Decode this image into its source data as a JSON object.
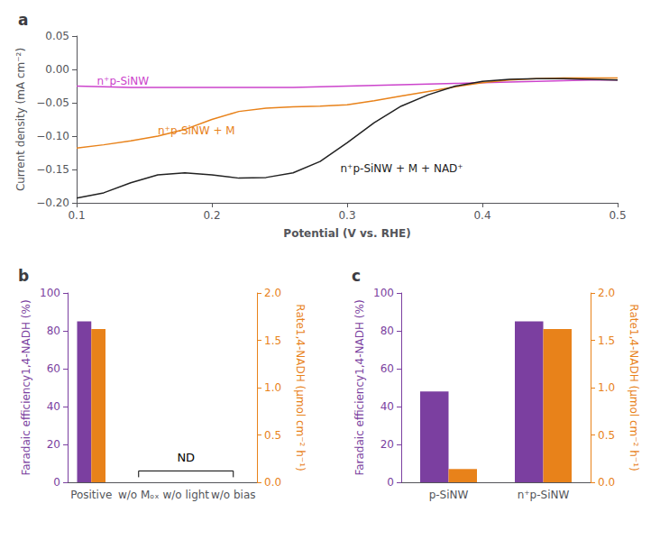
{
  "chart_data": [
    {
      "type": "line",
      "title": "a",
      "x": [
        0.1,
        0.12,
        0.14,
        0.16,
        0.18,
        0.2,
        0.22,
        0.24,
        0.26,
        0.28,
        0.3,
        0.32,
        0.34,
        0.36,
        0.38,
        0.4,
        0.42,
        0.44,
        0.46,
        0.48,
        0.5
      ],
      "series": [
        {
          "color": "#CC44CC",
          "values": [
            -0.025,
            -0.026,
            -0.027,
            -0.027,
            -0.027,
            -0.027,
            -0.027,
            -0.027,
            -0.027,
            -0.026,
            -0.025,
            -0.024,
            -0.023,
            -0.022,
            -0.021,
            -0.02,
            -0.019,
            -0.018,
            -0.017,
            -0.016,
            -0.016
          ]
        },
        {
          "color": "#E8821A",
          "values": [
            -0.118,
            -0.113,
            -0.107,
            -0.1,
            -0.09,
            -0.075,
            -0.063,
            -0.058,
            -0.056,
            -0.055,
            -0.053,
            -0.047,
            -0.04,
            -0.033,
            -0.026,
            -0.02,
            -0.016,
            -0.014,
            -0.013,
            -0.013,
            -0.013
          ]
        },
        {
          "color": "#222222",
          "values": [
            -0.193,
            -0.185,
            -0.17,
            -0.158,
            -0.155,
            -0.158,
            -0.163,
            -0.162,
            -0.155,
            -0.138,
            -0.11,
            -0.08,
            -0.055,
            -0.038,
            -0.025,
            -0.018,
            -0.015,
            -0.014,
            -0.014,
            -0.015,
            -0.016
          ]
        }
      ],
      "xlabel": "Potential (V vs. RHE)",
      "ylabel": "Current density (mA cm⁻²)",
      "xlim": [
        0.1,
        0.5
      ],
      "ylim": [
        -0.2,
        0.05
      ],
      "xticks": [
        0.1,
        0.2,
        0.3,
        0.4,
        0.5
      ],
      "yticks": [
        {
          "value": -0.2,
          "label": "−0.20"
        },
        {
          "value": -0.15,
          "label": "−0.15"
        },
        {
          "value": -0.1,
          "label": "−0.10"
        },
        {
          "value": -0.05,
          "label": "−0.05"
        },
        {
          "value": 0,
          "label": "0.00"
        },
        {
          "value": 0.05,
          "label": "0.05"
        }
      ],
      "grid": false,
      "annotations": [
        {
          "text": "n⁺p-SiNW",
          "x": 0.115,
          "y": -0.018,
          "color": "#CC44CC"
        },
        {
          "text": "n⁺p-SiNW + M",
          "x": 0.16,
          "y": -0.092,
          "color": "#E8821A"
        },
        {
          "text": "n⁺p-SiNW + M + NAD⁺",
          "x": 0.295,
          "y": -0.148,
          "color": "#222222"
        }
      ]
    },
    {
      "type": "bar",
      "title": "b",
      "categories": [
        "Positive",
        "w/o Mₒₓ",
        "w/o light",
        "w/o bias"
      ],
      "series": [
        {
          "color": "#7B3FA0",
          "values": [
            85,
            0,
            0,
            0
          ]
        },
        {
          "color": "#E8821A",
          "values": [
            1.62,
            0,
            0,
            0
          ],
          "axis": "y2"
        }
      ],
      "ylabel": "Faradaic efficiency1,4-NADH (%)",
      "y2label": "Rate1,4-NADH (μmol cm⁻² h⁻¹)",
      "ylim": [
        0,
        100
      ],
      "yticks": [
        0,
        20,
        40,
        60,
        80,
        100
      ],
      "y2lim": [
        0,
        2
      ],
      "y2ticks": [
        {
          "value": 0,
          "label": "0.0"
        },
        0.5,
        {
          "value": 1,
          "label": "1.0"
        },
        1.5,
        {
          "value": 2,
          "label": "2.0"
        }
      ],
      "grid": false,
      "annotations": [
        {
          "text": "ND",
          "from": "w/o Mₒₓ",
          "to": "w/o bias",
          "y": 10,
          "bracket_y": 6
        }
      ]
    },
    {
      "type": "bar",
      "title": "c",
      "categories": [
        "p-SiNW",
        "n⁺p-SiNW"
      ],
      "series": [
        {
          "color": "#7B3FA0",
          "values": [
            48,
            85
          ]
        },
        {
          "color": "#E8821A",
          "values": [
            0.14,
            1.62
          ],
          "axis": "y2"
        }
      ],
      "ylabel": "Faradaic efficiency1,4-NADH (%)",
      "y2label": "Rate1,4-NADH (μmol cm⁻² h⁻¹)",
      "ylim": [
        0,
        100
      ],
      "yticks": [
        0,
        20,
        40,
        60,
        80,
        100
      ],
      "y2lim": [
        0,
        2
      ],
      "y2ticks": [
        {
          "value": 0,
          "label": "0.0"
        },
        0.5,
        {
          "value": 1,
          "label": "1.0"
        },
        1.5,
        {
          "value": 2,
          "label": "2.0"
        }
      ],
      "grid": false
    }
  ]
}
